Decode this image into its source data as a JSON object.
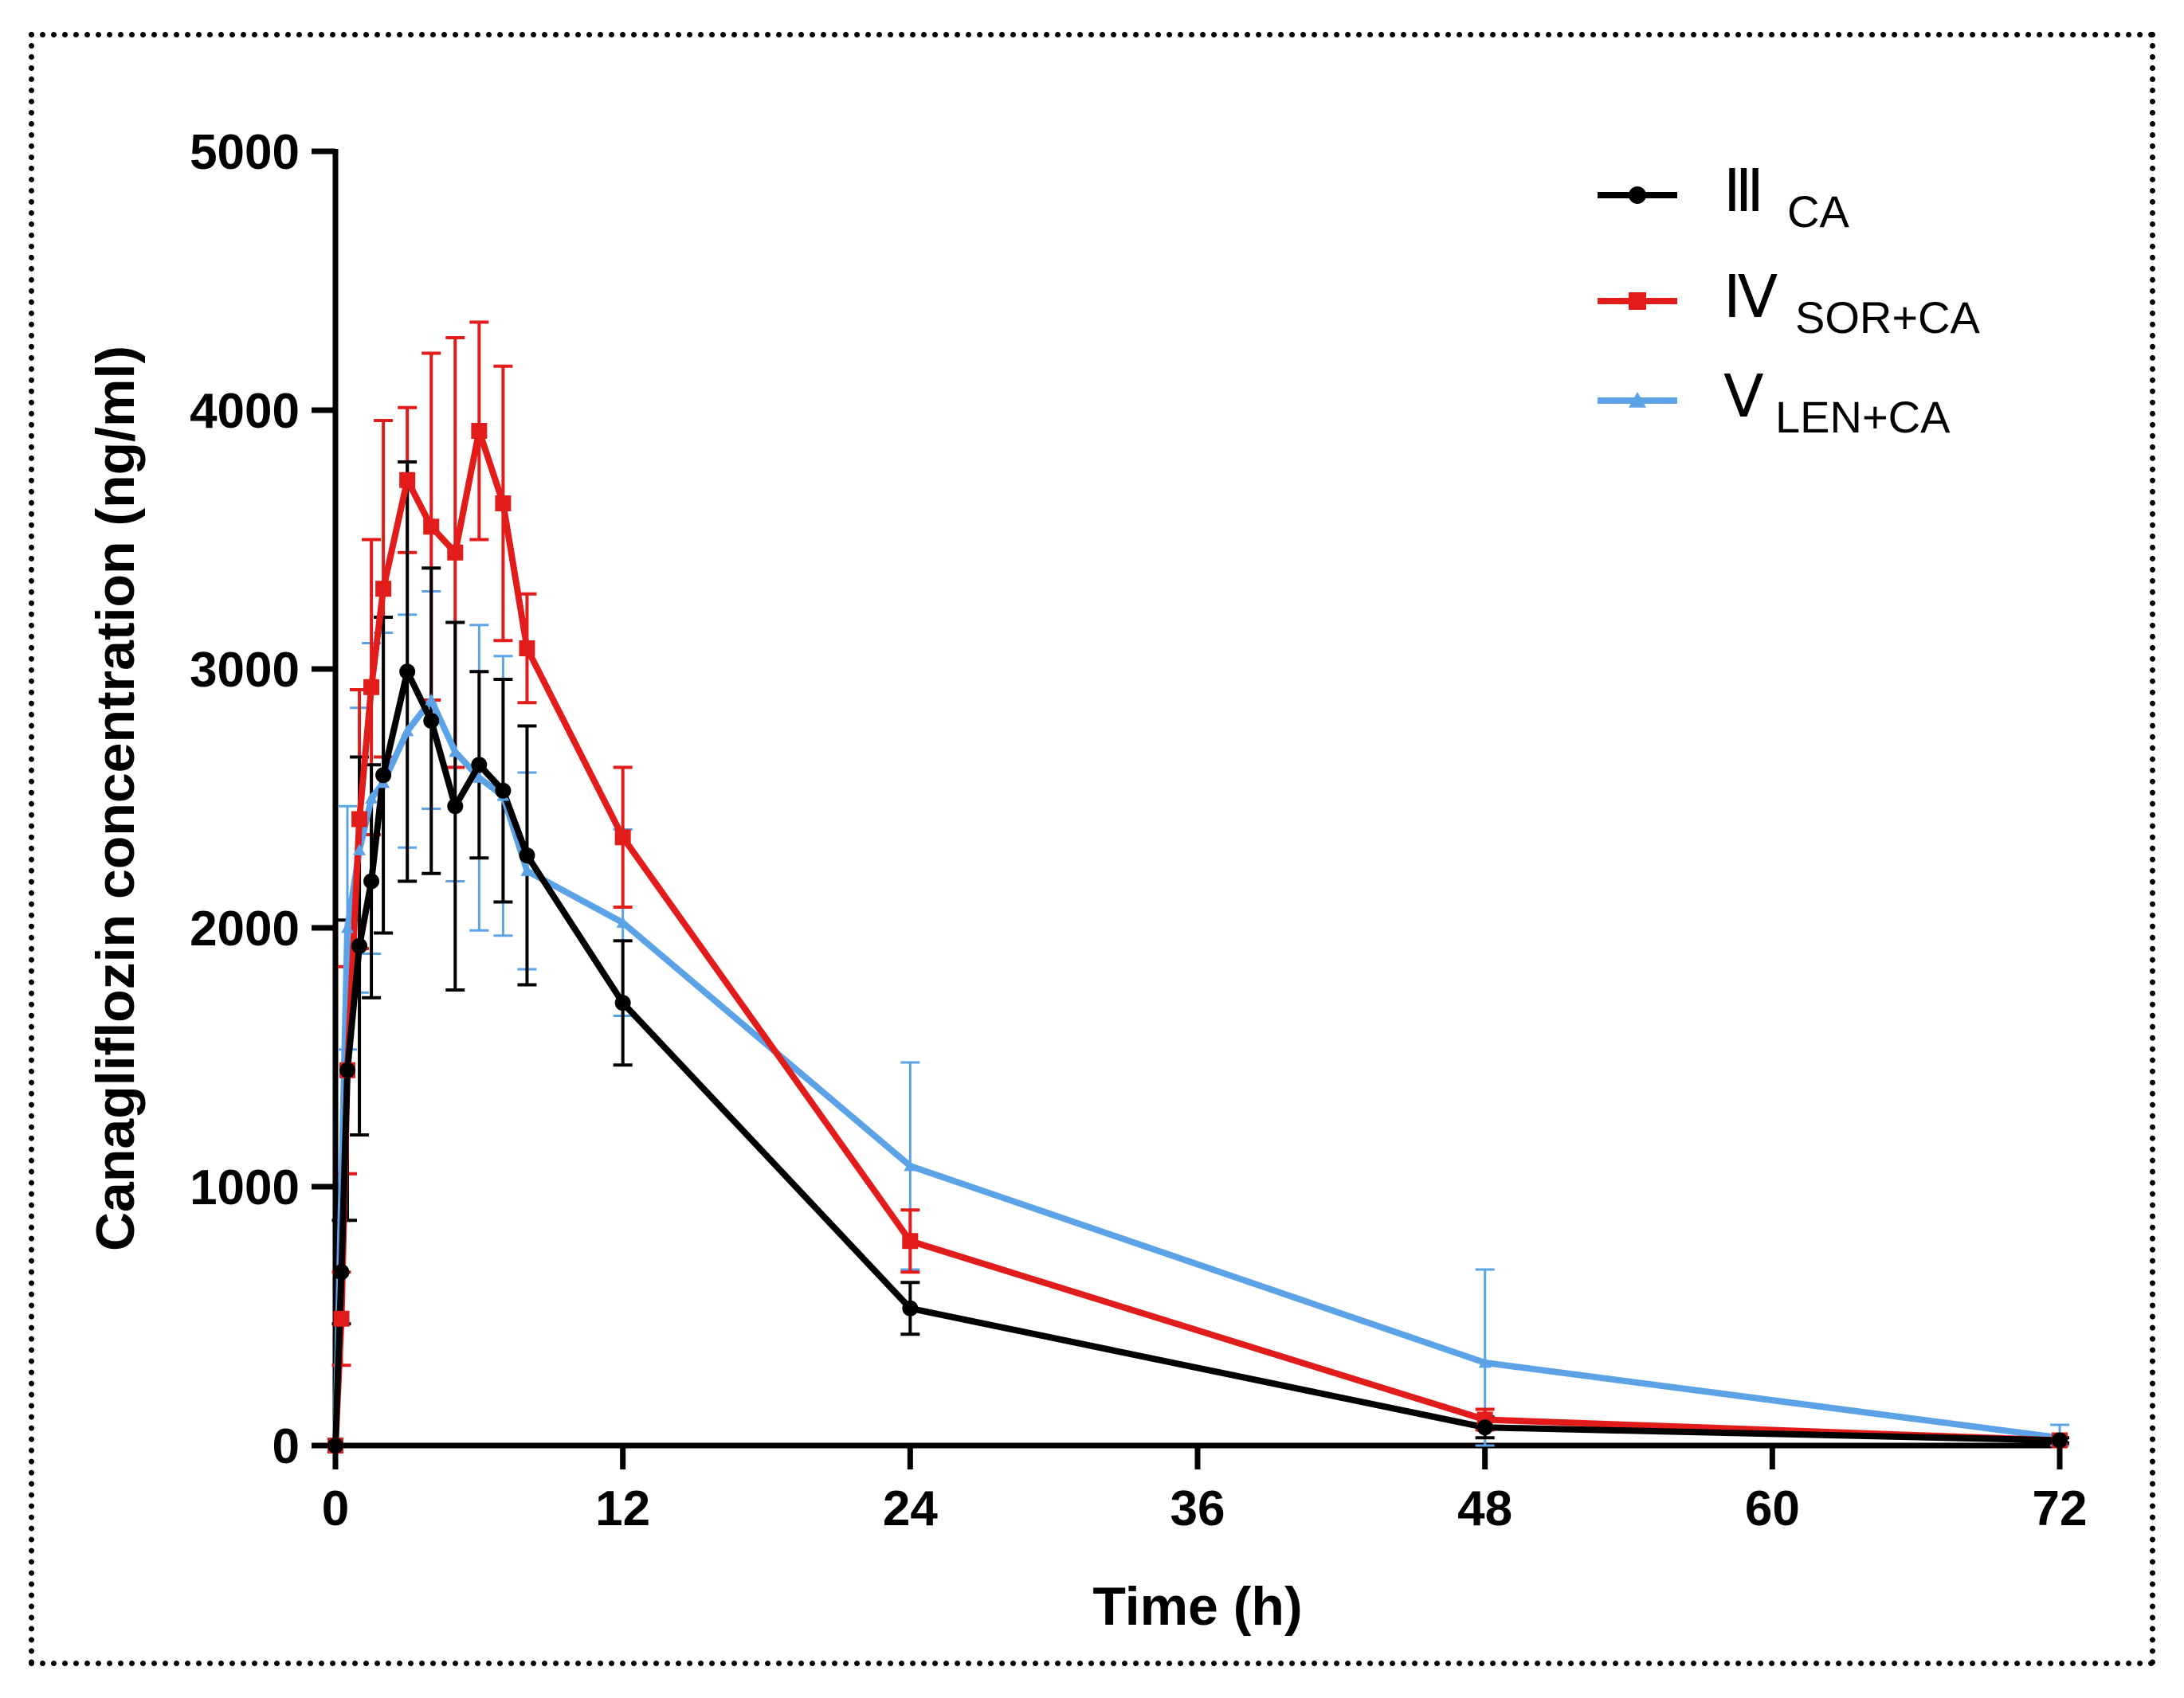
{
  "chart_data": {
    "type": "line",
    "xlabel": "Time (h)",
    "ylabel": "Canagliflozin concentration (ng/ml)",
    "xlim": [
      0,
      72
    ],
    "ylim": [
      0,
      5000
    ],
    "xticks": [
      0,
      12,
      24,
      36,
      48,
      60,
      72
    ],
    "yticks": [
      0,
      1000,
      2000,
      3000,
      4000,
      5000
    ],
    "grid": false,
    "legend_position": "top-right",
    "series": [
      {
        "name": "Ⅲ CA",
        "roman": "Ⅲ",
        "subscript": "CA",
        "color": "#000000",
        "marker": "circle",
        "x": [
          0,
          0.25,
          0.5,
          1,
          1.5,
          2,
          3,
          4,
          5,
          6,
          7,
          8,
          12,
          24,
          48,
          72
        ],
        "y": [
          0,
          670,
          1450,
          1930,
          2180,
          2590,
          2990,
          2800,
          2470,
          2630,
          2530,
          2280,
          1710,
          530,
          70,
          20
        ],
        "yerr": [
          0,
          200,
          580,
          730,
          450,
          610,
          810,
          590,
          710,
          360,
          430,
          500,
          240,
          100,
          40,
          10
        ]
      },
      {
        "name": "Ⅳ SOR+CA",
        "roman": "Ⅳ",
        "subscript": "SOR+CA",
        "color": "#e21b1b",
        "marker": "square",
        "x": [
          0,
          0.25,
          0.5,
          1,
          1.5,
          2,
          3,
          4,
          5,
          6,
          7,
          8,
          12,
          24,
          48,
          72
        ],
        "y": [
          0,
          490,
          1450,
          2420,
          2930,
          3310,
          3730,
          3550,
          3450,
          3920,
          3640,
          3080,
          2350,
          790,
          100,
          20
        ],
        "yerr": [
          0,
          180,
          400,
          500,
          570,
          650,
          280,
          670,
          830,
          420,
          530,
          210,
          270,
          120,
          40,
          10
        ]
      },
      {
        "name": "Ⅴ LEN+CA",
        "roman": "Ⅴ",
        "subscript": "LEN+CA",
        "color": "#5ba3e6",
        "marker": "triangle",
        "x": [
          0,
          0.5,
          1,
          1.5,
          2,
          3,
          4,
          5,
          6,
          7,
          8,
          12,
          24,
          48,
          72
        ],
        "y": [
          0,
          2000,
          2300,
          2500,
          2560,
          2760,
          2880,
          2680,
          2580,
          2510,
          2220,
          2020,
          1080,
          320,
          30
        ],
        "yerr": [
          0,
          470,
          550,
          600,
          580,
          450,
          420,
          500,
          590,
          540,
          380,
          360,
          400,
          360,
          50
        ]
      }
    ]
  }
}
